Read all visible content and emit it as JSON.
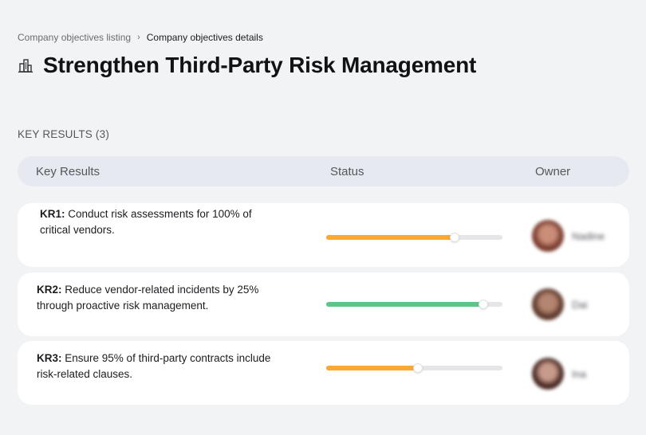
{
  "breadcrumb": {
    "parent": "Company objectives listing",
    "separator": "›",
    "current": "Company objectives details"
  },
  "objective": {
    "icon": "building-icon",
    "title": "Strengthen Third-Party Risk Management"
  },
  "key_results_section": {
    "label": "KEY RESULTS (3)"
  },
  "table": {
    "headers": {
      "key_results": "Key Results",
      "status": "Status",
      "owner": "Owner"
    },
    "rows": [
      {
        "code": "KR1:",
        "text": " Conduct risk assessments for 100% of critical vendors.",
        "progress": 0.73,
        "status_color": "#f9a832",
        "owner": "Nadine",
        "avatar_colors": [
          "#7a3d30",
          "#c98d78"
        ]
      },
      {
        "code": "KR2:",
        "text": " Reduce vendor-related incidents by 25% through proactive risk management.",
        "progress": 0.89,
        "status_color": "#5cc689",
        "owner": "Dai",
        "avatar_colors": [
          "#5e3a2c",
          "#b48570"
        ]
      },
      {
        "code": "KR3:",
        "text": " Ensure 95% of third-party contracts include risk-related clauses.",
        "progress": 0.52,
        "status_color": "#f9a832",
        "owner": "Ina",
        "avatar_colors": [
          "#4a2a24",
          "#c79a8b"
        ]
      }
    ]
  }
}
